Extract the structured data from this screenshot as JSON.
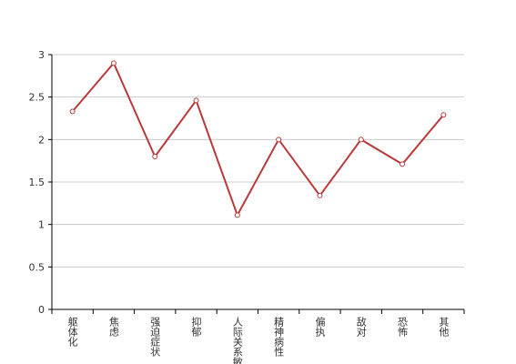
{
  "chart_data": {
    "type": "line",
    "categories": [
      "躯体化",
      "焦虑",
      "强迫症状",
      "抑郁",
      "人际关系敏感",
      "精神病性",
      "偏执",
      "敌对",
      "恐怖",
      "其他"
    ],
    "series": [
      {
        "color": "#b83a3a",
        "values": [
          2.33,
          2.9,
          1.8,
          2.46,
          1.11,
          2.0,
          1.34,
          2.0,
          1.71,
          2.29
        ]
      }
    ],
    "ylim": [
      0,
      3
    ],
    "yticks": [
      0,
      0.5,
      1,
      1.5,
      2,
      2.5,
      3
    ],
    "grid": true
  }
}
